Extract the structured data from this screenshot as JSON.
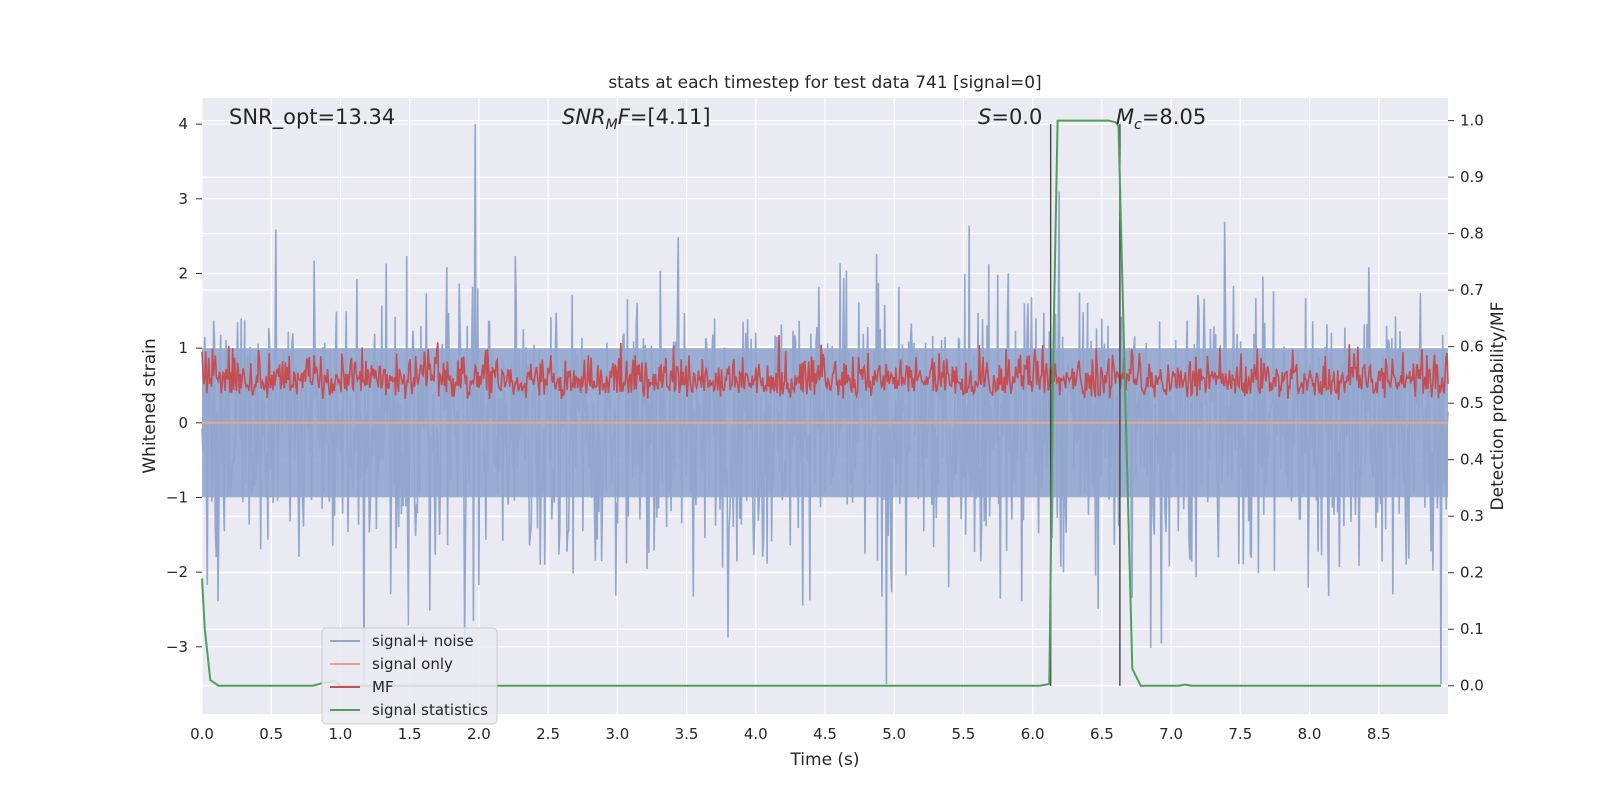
{
  "chart_data": {
    "type": "line",
    "title": "stats at each timestep for test data 741 [signal=0]",
    "xlabel": "Time (s)",
    "ylabel_left": "Whitened strain",
    "ylabel_right": "Detection probability/MF",
    "xlim": [
      0.0,
      9.0
    ],
    "ylim_left": [
      -3.9,
      4.35
    ],
    "ylim_right": [
      -0.05,
      1.04
    ],
    "x_ticks": [
      "0.0",
      "0.5",
      "1.0",
      "1.5",
      "2.0",
      "2.5",
      "3.0",
      "3.5",
      "4.0",
      "4.5",
      "5.0",
      "5.5",
      "6.0",
      "6.5",
      "7.0",
      "7.5",
      "8.0",
      "8.5"
    ],
    "y_ticks_left": [
      "4",
      "3",
      "2",
      "1",
      "0",
      "−1",
      "−2",
      "−3"
    ],
    "y_ticks_right": [
      "1.0",
      "0.9",
      "0.8",
      "0.7",
      "0.6",
      "0.5",
      "0.4",
      "0.3",
      "0.2",
      "0.1",
      "0.0"
    ],
    "grid": true,
    "legend_position": "lower-left",
    "annotations": [
      {
        "text": "SNR_opt=13.34",
        "x_pos": 0.19
      },
      {
        "text": "SNR_MF=[4.11]",
        "x_pos": 2.6,
        "display": "mf"
      },
      {
        "text": "S=0.0",
        "x_pos": 5.6,
        "display": "s"
      },
      {
        "text": "M_c=8.05",
        "x_pos": 6.63,
        "display": "mc"
      }
    ],
    "vertical_lines": [
      6.13,
      6.63
    ],
    "series": [
      {
        "name": "signal+ noise",
        "color": "#92a6ce",
        "axis": "left",
        "kind": "dense-noise",
        "note_values": {
          "approx_std": 0.9,
          "max": 4.0,
          "min": -3.5
        }
      },
      {
        "name": "signal only",
        "color": "#e8a58d",
        "axis": "left",
        "kind": "flat",
        "value": 0.0
      },
      {
        "name": "MF",
        "color": "#c44e52",
        "axis": "right",
        "kind": "dense-noise",
        "note_values": {
          "center": 0.52,
          "min": 0.5,
          "max": 0.65
        }
      },
      {
        "name": "signal statistics",
        "color": "#4e9f5a",
        "axis": "right",
        "kind": "line",
        "x": [
          0.0,
          0.02,
          0.06,
          0.12,
          0.8,
          0.88,
          0.96,
          1.0,
          6.05,
          6.12,
          6.15,
          6.18,
          6.22,
          6.55,
          6.6,
          6.62,
          6.66,
          6.72,
          6.78,
          7.05,
          7.1,
          7.15,
          7.25,
          8.95
        ],
        "y": [
          0.19,
          0.1,
          0.01,
          0.0,
          0.0,
          0.005,
          0.008,
          0.0,
          0.0,
          0.003,
          0.6,
          1.0,
          1.0,
          1.0,
          0.997,
          0.99,
          0.6,
          0.03,
          0.0,
          0.0,
          0.002,
          0.0,
          0.0,
          0.0
        ]
      }
    ]
  }
}
